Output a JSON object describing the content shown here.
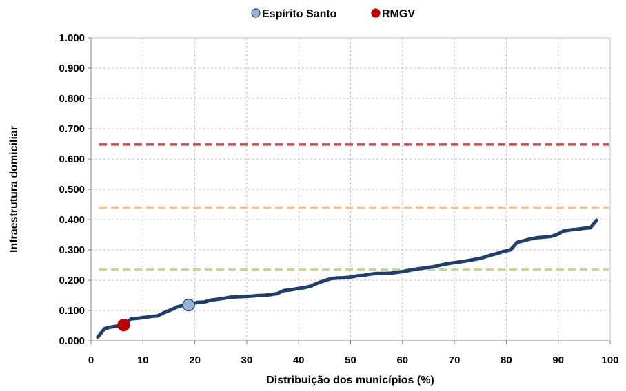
{
  "chart_data": {
    "type": "line",
    "title": "",
    "xlabel": "Distribuição  dos municípios (%)",
    "ylabel": "Infraestrutura domiciliar",
    "xlim": [
      0,
      100
    ],
    "ylim": [
      0,
      1
    ],
    "x_ticks": [
      "0",
      "10",
      "20",
      "30",
      "40",
      "50",
      "60",
      "70",
      "80",
      "90",
      "100"
    ],
    "y_ticks": [
      "0.000",
      "0.100",
      "0.200",
      "0.300",
      "0.400",
      "0.500",
      "0.600",
      "0.700",
      "0.800",
      "0.900",
      "1.000"
    ],
    "grid": true,
    "legend_position": "top-center",
    "series": [
      {
        "type": "line",
        "color": "#1f3e6e",
        "x": [
          1.3,
          2.6,
          3.8,
          5.1,
          6.4,
          7.7,
          9.0,
          10.3,
          11.5,
          12.8,
          14.1,
          15.4,
          16.7,
          17.9,
          19.2,
          20.5,
          21.8,
          23.1,
          24.4,
          25.6,
          26.9,
          28.2,
          29.5,
          30.8,
          32.1,
          33.3,
          34.6,
          35.9,
          37.2,
          38.5,
          39.7,
          41.0,
          42.3,
          43.6,
          44.9,
          46.2,
          47.4,
          48.7,
          50.0,
          51.3,
          52.6,
          53.8,
          55.1,
          56.4,
          57.7,
          59.0,
          60.3,
          61.5,
          62.8,
          64.1,
          65.4,
          66.7,
          67.9,
          69.2,
          70.5,
          71.8,
          73.1,
          74.4,
          75.6,
          76.9,
          78.2,
          79.5,
          80.8,
          82.1,
          83.3,
          84.6,
          85.9,
          87.2,
          88.5,
          89.7,
          91.0,
          92.3,
          93.6,
          94.9,
          96.2,
          97.4
        ],
        "values": [
          0.012,
          0.04,
          0.045,
          0.049,
          0.052,
          0.072,
          0.074,
          0.077,
          0.08,
          0.082,
          0.093,
          0.102,
          0.112,
          0.118,
          0.12,
          0.127,
          0.128,
          0.134,
          0.137,
          0.14,
          0.144,
          0.145,
          0.146,
          0.147,
          0.149,
          0.15,
          0.152,
          0.156,
          0.166,
          0.168,
          0.172,
          0.175,
          0.18,
          0.19,
          0.198,
          0.205,
          0.207,
          0.208,
          0.21,
          0.214,
          0.216,
          0.22,
          0.222,
          0.222,
          0.223,
          0.226,
          0.229,
          0.233,
          0.237,
          0.24,
          0.243,
          0.247,
          0.252,
          0.256,
          0.259,
          0.262,
          0.266,
          0.27,
          0.275,
          0.282,
          0.288,
          0.295,
          0.3,
          0.325,
          0.33,
          0.336,
          0.34,
          0.342,
          0.344,
          0.35,
          0.362,
          0.366,
          0.368,
          0.371,
          0.373,
          0.398
        ]
      },
      {
        "type": "hline",
        "color": "#c0504d",
        "value": 0.648
      },
      {
        "type": "hline",
        "color": "#fac090",
        "value": 0.44
      },
      {
        "type": "hline",
        "color": "#c3d69b",
        "value": 0.235
      },
      {
        "type": "point",
        "name": "Espírito Santo",
        "color": "#95b3d7",
        "stroke": "#1f3e6e",
        "x": 18.8,
        "y": 0.118
      },
      {
        "type": "point",
        "name": "RMGV",
        "color": "#c00000",
        "stroke": "#c00000",
        "x": 6.3,
        "y": 0.052
      }
    ]
  }
}
